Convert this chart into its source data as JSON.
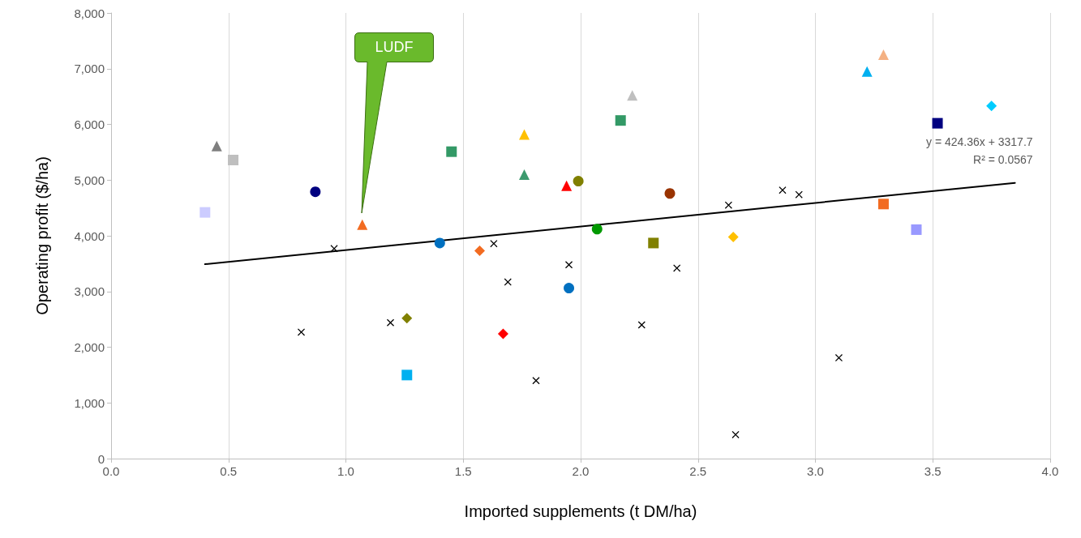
{
  "chart_data": {
    "type": "scatter",
    "xlabel": "Imported supplements (t DM/ha)",
    "ylabel": "Operating profit ($/ha)",
    "xlim": [
      0,
      4
    ],
    "xticks": [
      {
        "value": 0,
        "label": "0.0"
      },
      {
        "value": 0.5,
        "label": "0.5"
      },
      {
        "value": 1,
        "label": "1.0"
      },
      {
        "value": 1.5,
        "label": "1.5"
      },
      {
        "value": 2,
        "label": "2.0"
      },
      {
        "value": 2.5,
        "label": "2.5"
      },
      {
        "value": 3,
        "label": "3.0"
      },
      {
        "value": 3.5,
        "label": "3.5"
      },
      {
        "value": 4,
        "label": "4.0"
      }
    ],
    "ylim": [
      0,
      8000
    ],
    "yticks": [
      0,
      {
        "value": 1000,
        "label": "1,000"
      },
      {
        "value": 2000,
        "label": "2,000"
      },
      {
        "value": 3000,
        "label": "3,000"
      },
      {
        "value": 4000,
        "label": "4,000"
      },
      {
        "value": 5000,
        "label": "5,000"
      },
      {
        "value": 6000,
        "label": "6,000"
      },
      {
        "value": 7000,
        "label": "7,000"
      },
      {
        "value": 8000,
        "label": "8,000"
      }
    ],
    "grid": "x",
    "series": [
      {
        "marker": "triangle",
        "x": [
          0.45,
          1.76,
          1.76,
          2.22,
          3.29,
          1.07,
          1.94,
          3.22
        ],
        "values": [
          5610,
          5100,
          5820,
          6520,
          7250,
          4200,
          4900,
          6950
        ],
        "colors": [
          "#7f7f7f",
          "#3c9a6e",
          "#ffc000",
          "#bfbfbf",
          "#f4b183",
          "#f26b21",
          "#ff0000",
          "#00b0f0"
        ]
      },
      {
        "marker": "square",
        "x": [
          0.52,
          1.45,
          1.26,
          3.43,
          0.4,
          2.17,
          2.31,
          3.52,
          3.29
        ],
        "values": [
          5360,
          5510,
          1500,
          4110,
          4420,
          6070,
          3870,
          6020,
          4570
        ],
        "colors": [
          "#bfbfbf",
          "#339966",
          "#00b0f0",
          "#9999ff",
          "#ccccff",
          "#339966",
          "#808000",
          "#000080",
          "#f26b21"
        ]
      },
      {
        "marker": "circle",
        "x": [
          0.87,
          1.4,
          1.99,
          2.07,
          2.38,
          1.95
        ],
        "values": [
          4790,
          3870,
          4980,
          4120,
          4760,
          3060
        ],
        "colors": [
          "#000080",
          "#0070c0",
          "#808000",
          "#009900",
          "#993300",
          "#0070c0"
        ]
      },
      {
        "marker": "diamond",
        "x": [
          1.57,
          1.26,
          1.67,
          3.75,
          2.65
        ],
        "values": [
          3730,
          2520,
          2240,
          6330,
          3980
        ],
        "colors": [
          "#f26b21",
          "#808000",
          "#ff0000",
          "#00ccff",
          "#ffc000"
        ]
      },
      {
        "marker": "cross",
        "color": "#000000",
        "x": [
          0.81,
          0.95,
          1.19,
          1.63,
          1.69,
          1.81,
          1.95,
          2.26,
          2.41,
          2.63,
          2.66,
          2.86,
          2.93,
          3.1
        ],
        "values": [
          2270,
          3770,
          2440,
          3860,
          3170,
          1400,
          3480,
          2400,
          3420,
          4550,
          430,
          4820,
          4740,
          1810
        ]
      },
      {
        "type": "line",
        "line_style": "solid",
        "color": "#000000",
        "x": [
          0.4,
          3.85
        ],
        "values": [
          3490,
          4950
        ]
      }
    ],
    "annotations": [
      "y = 424.36x + 3317.7",
      "R² = 0.0567",
      "LUDF"
    ]
  }
}
